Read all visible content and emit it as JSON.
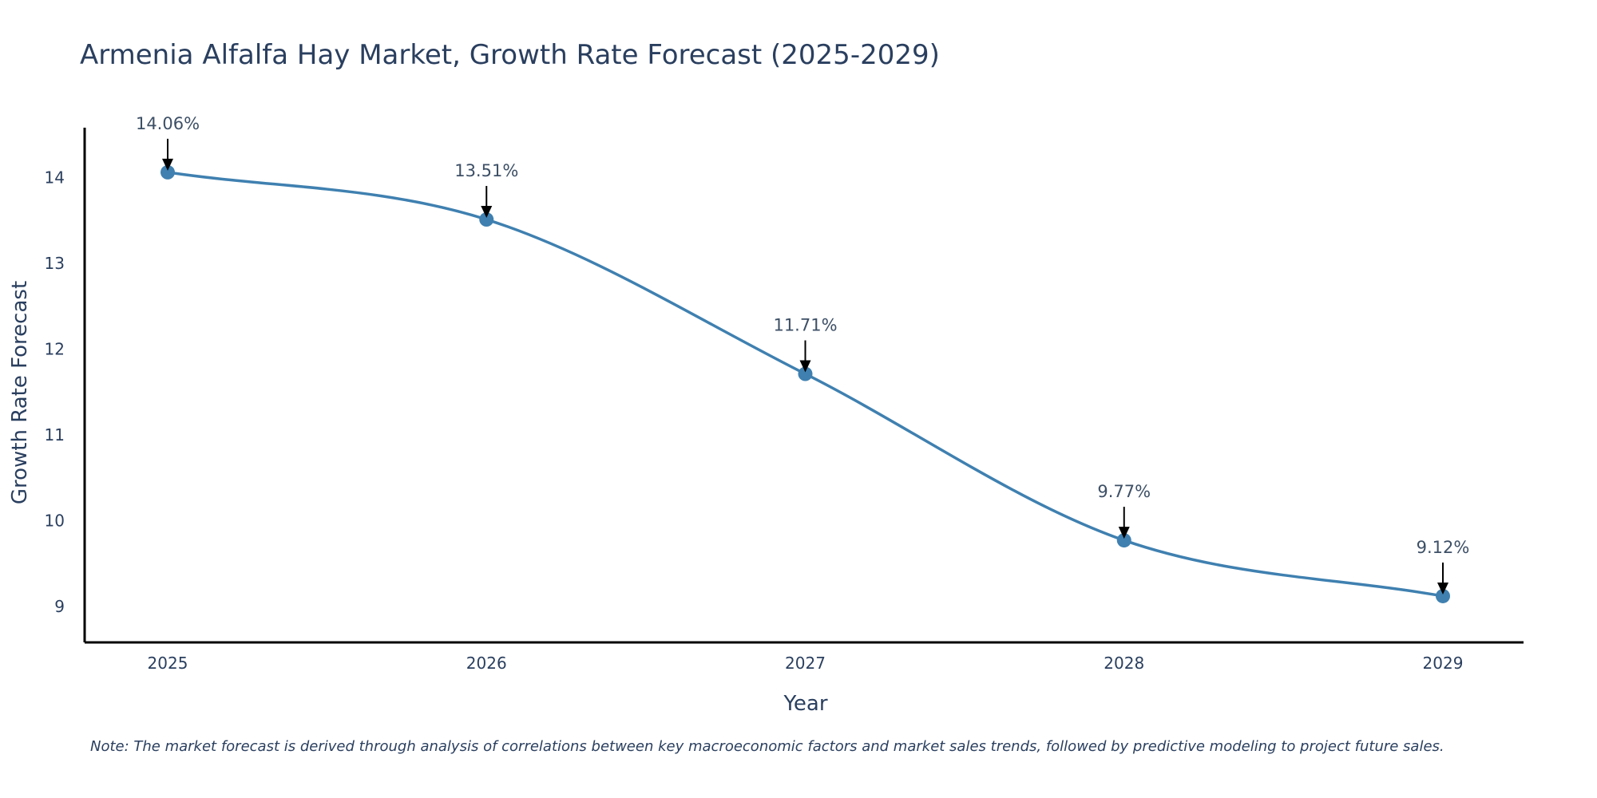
{
  "chart_data": {
    "type": "line",
    "title": "Armenia Alfalfa Hay Market, Growth Rate Forecast (2025-2029)",
    "xlabel": "Year",
    "ylabel": "Growth Rate Forecast",
    "categories": [
      "2025",
      "2026",
      "2027",
      "2028",
      "2029"
    ],
    "values": [
      14.06,
      13.51,
      11.71,
      9.77,
      9.12
    ],
    "data_labels": [
      "14.06%",
      "13.51%",
      "11.71%",
      "9.77%",
      "9.12%"
    ],
    "yticks": [
      9,
      10,
      11,
      12,
      13,
      14
    ],
    "ylim": [
      8.58,
      14.58
    ],
    "grid": false,
    "line_color": "#3f80b0",
    "marker_color": "#3f80b0",
    "arrow_color": "#000000",
    "note": "Note: The market forecast is derived through analysis of correlations between key macroeconomic factors and market sales trends, followed by predictive modeling to project future sales."
  }
}
